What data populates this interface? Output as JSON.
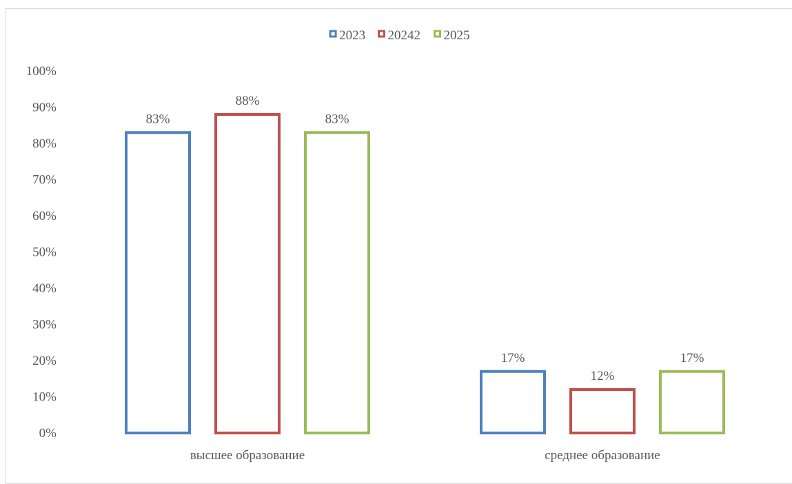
{
  "chart_data": {
    "type": "bar",
    "categories": [
      "высшее образование",
      "среднее образование"
    ],
    "series": [
      {
        "name": "2023",
        "values": [
          83,
          17
        ],
        "color": "#4f81bd"
      },
      {
        "name": "20242",
        "values": [
          88,
          12
        ],
        "color": "#c0504d"
      },
      {
        "name": "2025",
        "values": [
          83,
          17
        ],
        "color": "#9bbb59"
      }
    ],
    "value_format": "percent",
    "ylim": [
      0,
      100
    ],
    "yticks": [
      0,
      10,
      20,
      30,
      40,
      50,
      60,
      70,
      80,
      90,
      100
    ],
    "ytick_labels": [
      "0%",
      "10%",
      "20%",
      "30%",
      "40%",
      "50%",
      "60%",
      "70%",
      "80%",
      "90%",
      "100%"
    ],
    "data_labels": [
      [
        "83%",
        "17%"
      ],
      [
        "88%",
        "12%"
      ],
      [
        "83%",
        "17%"
      ]
    ],
    "bar_style": "outline",
    "legend_position": "top-center",
    "grid": false,
    "title": "",
    "xlabel": "",
    "ylabel": ""
  }
}
